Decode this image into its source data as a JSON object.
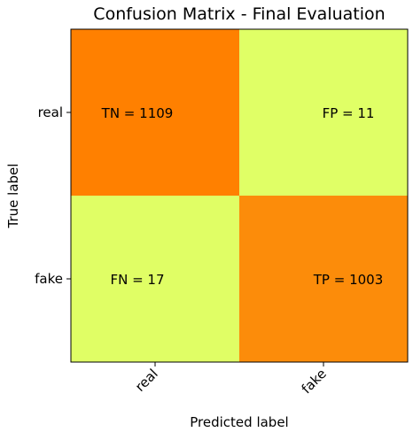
{
  "chart_data": {
    "type": "heatmap",
    "title": "Confusion Matrix - Final Evaluation",
    "xlabel": "Predicted label",
    "ylabel": "True label",
    "x_categories": [
      "real",
      "fake"
    ],
    "y_categories": [
      "real",
      "fake"
    ],
    "values": [
      [
        1109,
        11
      ],
      [
        17,
        1003
      ]
    ],
    "cell_labels": [
      [
        "TN = 1109",
        "FP = 11"
      ],
      [
        "FN = 17",
        "TP = 1003"
      ]
    ],
    "colormap": {
      "low": "#e0ff66",
      "high": "#ff8000"
    },
    "colorbar": false,
    "grid": false
  }
}
